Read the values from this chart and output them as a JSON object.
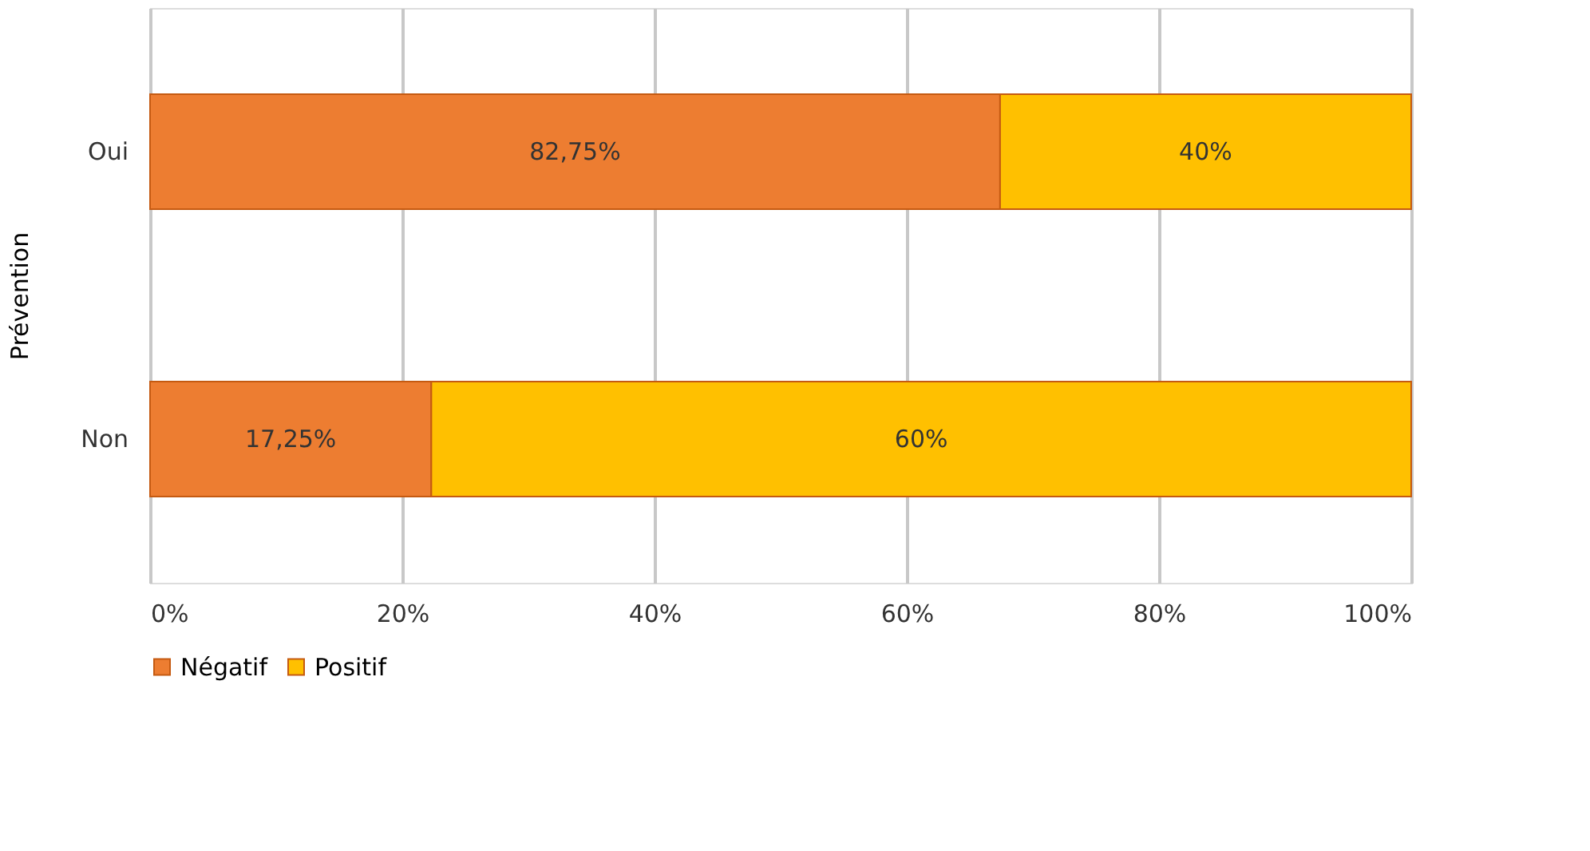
{
  "chart_data": {
    "type": "bar",
    "orientation": "horizontal",
    "stacked": true,
    "ylabel": "Prévention",
    "categories": [
      "Oui",
      "Non"
    ],
    "series": [
      {
        "name": "Négatif",
        "color": "#ed7d31",
        "values": [
          67.4,
          22.3
        ]
      },
      {
        "name": "Positif",
        "color": "#ffc000",
        "values": [
          32.6,
          77.7
        ]
      }
    ],
    "annotations": [
      "82,75%",
      "40%",
      "17,25%",
      "60%"
    ],
    "xlim": [
      0,
      100
    ],
    "xticks": [
      {
        "value": 0,
        "label": "0%"
      },
      {
        "value": 20,
        "label": "20%"
      },
      {
        "value": 40,
        "label": "40%"
      },
      {
        "value": 60,
        "label": "60%"
      },
      {
        "value": 80,
        "label": "80%"
      },
      {
        "value": 100,
        "label": "100%"
      }
    ],
    "grid": "x",
    "legend": "bottom"
  }
}
